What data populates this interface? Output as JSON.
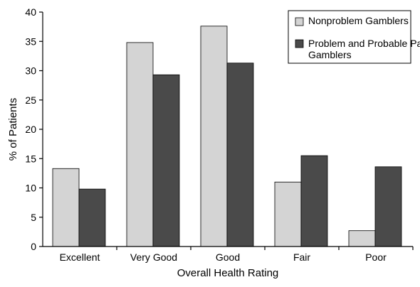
{
  "chart_data": {
    "type": "bar",
    "title": "",
    "xlabel": "Overall Health Rating",
    "ylabel": "% of Patients",
    "categories": [
      "Excellent",
      "Very Good",
      "Good",
      "Fair",
      "Poor"
    ],
    "ylim": [
      0,
      40
    ],
    "yticks": [
      0,
      5,
      10,
      15,
      20,
      25,
      30,
      35,
      40
    ],
    "grid": false,
    "legend_position": "top-right",
    "series": [
      {
        "name": "Nonproblem Gamblers",
        "color": "#d4d4d4",
        "values": [
          13.3,
          34.8,
          37.6,
          11.0,
          2.7
        ]
      },
      {
        "name": "Problem and Probable Pathologic Gamblers",
        "color": "#4a4a4a",
        "values": [
          9.8,
          29.3,
          31.3,
          15.5,
          13.6
        ]
      }
    ]
  }
}
